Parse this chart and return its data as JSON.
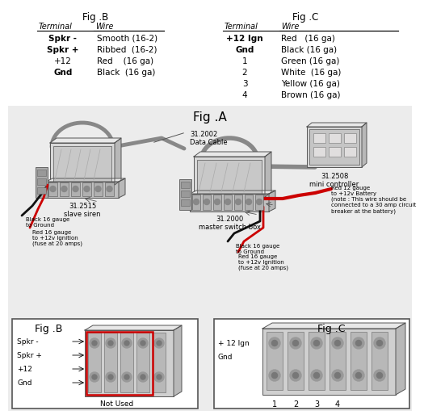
{
  "bg_color": "#ffffff",
  "fig_a_bg": "#ffffff",
  "fig_b_title": "Fig .B",
  "fig_c_title": "Fig .C",
  "fig_a_title": "Fig .A",
  "fig_b_table": {
    "rows": [
      [
        "Spkr -",
        "Smooth (16-2)"
      ],
      [
        "Spkr +",
        "Ribbed  (16-2)"
      ],
      [
        "+12",
        "Red    (16 ga)"
      ],
      [
        "Gnd",
        "Black  (16 ga)"
      ]
    ]
  },
  "fig_c_table": {
    "rows": [
      [
        "+12 Ign",
        "Red   (16 ga)"
      ],
      [
        "Gnd",
        "Black (16 ga)"
      ],
      [
        "1",
        "Green (16 ga)"
      ],
      [
        "2",
        "White  (16 ga)"
      ],
      [
        "3",
        "Yellow (16 ga)"
      ],
      [
        "4",
        "Brown (16 ga)"
      ]
    ]
  },
  "labels": {
    "data_cable": "31.2002\nData Cable",
    "mini_controller": "31.2508\nmini controller",
    "slave_siren": "31.2515\nslave siren",
    "master_switch": "31.2000\nmaster switch box",
    "black_gnd_left": "Black 16 gauge\nto Ground",
    "red_ign_left": "Red 16 gauge\nto +12v Ignition\n(fuse at 20 amps)",
    "black_gnd_right": "Black 16 gauge\nto Ground",
    "red_ign_right": "Red 16 gauge\nto +12v Ignition\n(fuse at 20 amps)",
    "red_battery": "Red 12 gauge\nto +12v Battery\n(note : This wire should be\nconnected to a 30 amp circuit\nbreaker at the battery)",
    "not_used": "Not Used",
    "fig_b_terms": [
      "Spkr -",
      "Spkr +",
      "+12",
      "Gnd"
    ],
    "fig_c_terms": [
      "+ 12 Ign",
      "Gnd",
      "1",
      "2",
      "3",
      "4"
    ]
  }
}
